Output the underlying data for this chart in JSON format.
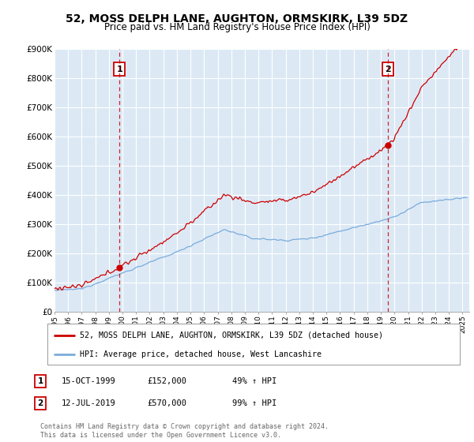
{
  "title": "52, MOSS DELPH LANE, AUGHTON, ORMSKIRK, L39 5DZ",
  "subtitle": "Price paid vs. HM Land Registry's House Price Index (HPI)",
  "ylim": [
    0,
    900000
  ],
  "yticks": [
    0,
    100000,
    200000,
    300000,
    400000,
    500000,
    600000,
    700000,
    800000,
    900000
  ],
  "ytick_labels": [
    "£0",
    "£100K",
    "£200K",
    "£300K",
    "£400K",
    "£500K",
    "£600K",
    "£700K",
    "£800K",
    "£900K"
  ],
  "xlim_start": 1995.0,
  "xlim_end": 2025.5,
  "sale1_x": 1999.79,
  "sale1_y": 152000,
  "sale2_x": 2019.53,
  "sale2_y": 570000,
  "property_line_color": "#cc0000",
  "hpi_line_color": "#7aabdc",
  "plot_bg_color": "#dce9f5",
  "fig_bg_color": "#ffffff",
  "grid_color": "#ffffff",
  "legend_property": "52, MOSS DELPH LANE, AUGHTON, ORMSKIRK, L39 5DZ (detached house)",
  "legend_hpi": "HPI: Average price, detached house, West Lancashire",
  "annotation1_label": "1",
  "annotation1_date": "15-OCT-1999",
  "annotation1_price": "£152,000",
  "annotation1_hpi": "49% ↑ HPI",
  "annotation2_label": "2",
  "annotation2_date": "12-JUL-2019",
  "annotation2_price": "£570,000",
  "annotation2_hpi": "99% ↑ HPI",
  "footer": "Contains HM Land Registry data © Crown copyright and database right 2024.\nThis data is licensed under the Open Government Licence v3.0."
}
